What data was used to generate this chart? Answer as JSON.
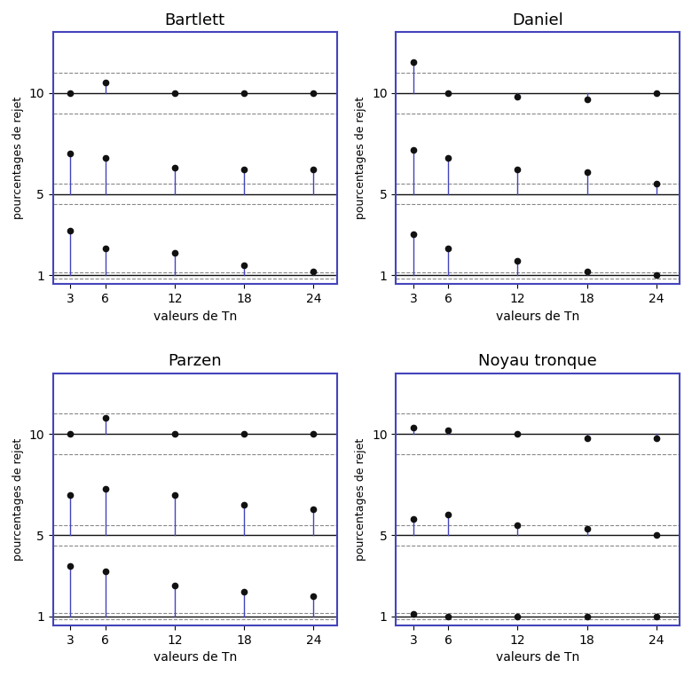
{
  "titles": [
    "Bartlett",
    "Daniel",
    "Parzen",
    "Noyau tronque"
  ],
  "x_values": [
    3,
    6,
    12,
    18,
    24
  ],
  "xlabel": "valeurs de Tn",
  "ylabel": "pourcentages de rejet",
  "ref_lines": [
    1.0,
    5.0,
    10.0
  ],
  "dashed_offsets": {
    "low": [
      0.15,
      0.2
    ],
    "mid": [
      0.4,
      0.55
    ],
    "high": [
      0.9,
      1.1
    ]
  },
  "series": {
    "Bartlett": {
      "top": [
        10.0,
        10.5,
        10.0,
        10.0,
        10.0
      ],
      "mid": [
        7.0,
        6.8,
        6.3,
        6.2,
        6.2
      ],
      "low": [
        3.2,
        2.3,
        2.1,
        1.5,
        1.2
      ]
    },
    "Daniel": {
      "top": [
        11.5,
        10.0,
        9.8,
        9.7,
        10.0
      ],
      "mid": [
        7.2,
        6.8,
        6.2,
        6.1,
        5.5
      ],
      "low": [
        3.0,
        2.3,
        1.7,
        1.2,
        1.0
      ]
    },
    "Parzen": {
      "top": [
        10.0,
        10.8,
        10.0,
        10.0,
        10.0
      ],
      "mid": [
        7.0,
        7.3,
        7.0,
        6.5,
        6.3
      ],
      "low": [
        3.5,
        3.2,
        2.5,
        2.2,
        2.0
      ]
    },
    "Noyau tronque": {
      "top": [
        10.3,
        10.2,
        10.0,
        9.8,
        9.8
      ],
      "mid": [
        5.8,
        6.0,
        5.5,
        5.3,
        5.0
      ],
      "low": [
        1.1,
        1.0,
        1.0,
        1.0,
        1.0
      ]
    }
  },
  "ylim": [
    0.55,
    13.0
  ],
  "yticks": [
    1,
    5,
    10
  ],
  "spine_color": "#4444bb",
  "line_color": "#4444bb",
  "dot_color": "#111111",
  "ref_line_color": "#111111",
  "dashed_color": "#888888",
  "bg_color": "#f0f0f0"
}
